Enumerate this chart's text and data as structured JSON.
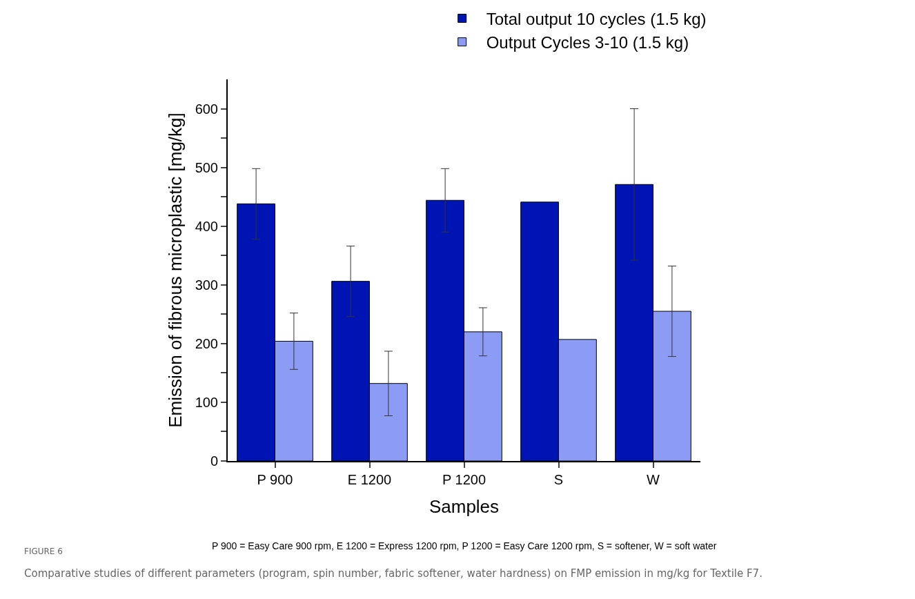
{
  "chart_data": {
    "type": "bar",
    "xlabel": "Samples",
    "ylabel": "Emission of fibrous microplastic [mg/kg]",
    "categories": [
      "P 900",
      "E 1200",
      "P 1200",
      "S",
      "W"
    ],
    "series": [
      {
        "name": "Total output 10 cycles (1.5 kg)",
        "color": "#0014b4",
        "values": [
          438,
          306,
          444,
          441,
          471
        ],
        "errors": [
          60,
          60,
          54,
          null,
          129
        ]
      },
      {
        "name": "Output Cycles 3-10 (1.5 kg)",
        "color": "#8c9cf5",
        "values": [
          204,
          132,
          220,
          207,
          255
        ],
        "errors": [
          48,
          55,
          41,
          null,
          77
        ]
      }
    ],
    "ylim": [
      0,
      650
    ],
    "yticks": [
      0,
      {
        "value": 50,
        "label": null
      },
      100,
      {
        "value": 150,
        "label": null
      },
      200,
      {
        "value": 250,
        "label": null
      },
      300,
      {
        "value": 350,
        "label": null
      },
      400,
      {
        "value": 450,
        "label": null
      },
      500,
      {
        "value": 550,
        "label": null
      },
      600
    ],
    "grid": false,
    "legend": "top right",
    "annotations": [
      "P 900 = Easy Care 900 rpm, E 1200 = Express 1200 rpm, P 1200 = Easy Care 1200 rpm, S = softener, W = soft water",
      "FIGURE 6",
      "Comparative studies of different parameters (program, spin number, fabric softener, water hardness) on FMP emission in mg/kg for Textile F7."
    ]
  }
}
